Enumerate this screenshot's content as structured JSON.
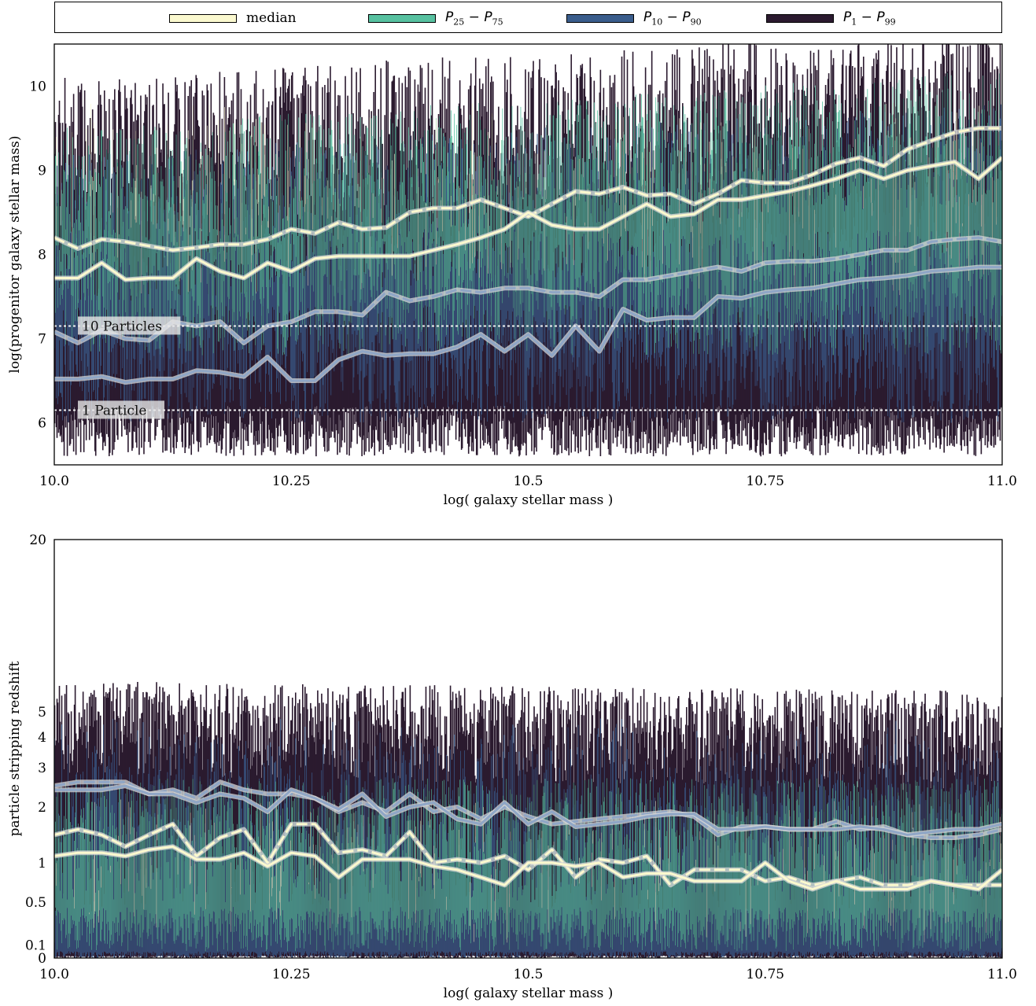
{
  "legend": [
    {
      "label": "median",
      "color": "#fbf9cf",
      "math": false
    },
    {
      "label": "P25 − P75",
      "sym_a": "P",
      "sub_a": "25",
      "sym_b": "P",
      "sub_b": "75",
      "color": "#57c1a0",
      "math": true
    },
    {
      "label": "P10 − P90",
      "sym_a": "P",
      "sub_a": "10",
      "sym_b": "P",
      "sub_b": "90",
      "color": "#3a5d8c",
      "math": true
    },
    {
      "label": "P1 − P99",
      "sym_a": "P",
      "sub_a": "1",
      "sym_b": "P",
      "sub_b": "99",
      "color": "#2b1a2f",
      "math": true
    }
  ],
  "chart_data": [
    {
      "type": "line",
      "title": "",
      "xlabel": "log( galaxy stellar mass )",
      "ylabel": "log(progenitor galaxy stellar mass)",
      "xlim": [
        10.0,
        11.0
      ],
      "ylim": [
        5.5,
        10.5
      ],
      "xticks": [
        10.0,
        10.25,
        10.5,
        10.75,
        11.0
      ],
      "xtick_labels": [
        "10.0",
        "10.25",
        "10.5",
        "10.75",
        "11.0"
      ],
      "yticks": [
        6,
        7,
        8,
        9,
        10
      ],
      "ytick_labels": [
        "6",
        "7",
        "8",
        "9",
        "10"
      ],
      "grid": false,
      "band_range": {
        "bottom_min": 5.6,
        "bottom_max": 6.2,
        "top_min": 8.3,
        "top_max": 10.5
      },
      "reference_lines": [
        {
          "label": "10 Particles",
          "y": 7.15
        },
        {
          "label": "1 Particle",
          "y": 6.15
        }
      ],
      "series": [
        {
          "role": "median-dashed",
          "style": "dashed",
          "color": "#fbf9cf",
          "x": [
            10.0,
            10.025,
            10.05,
            10.075,
            10.1,
            10.125,
            10.15,
            10.175,
            10.2,
            10.225,
            10.25,
            10.275,
            10.3,
            10.325,
            10.35,
            10.375,
            10.4,
            10.425,
            10.45,
            10.475,
            10.5,
            10.525,
            10.55,
            10.575,
            10.6,
            10.625,
            10.65,
            10.675,
            10.7,
            10.725,
            10.75,
            10.775,
            10.8,
            10.825,
            10.85,
            10.875,
            10.9,
            10.925,
            10.95,
            10.975,
            11.0
          ],
          "y": [
            8.2,
            8.07,
            8.18,
            8.15,
            8.1,
            8.05,
            8.08,
            8.12,
            8.12,
            8.18,
            8.3,
            8.25,
            8.38,
            8.3,
            8.32,
            8.5,
            8.55,
            8.55,
            8.65,
            8.55,
            8.45,
            8.6,
            8.75,
            8.72,
            8.8,
            8.7,
            8.72,
            8.6,
            8.72,
            8.88,
            8.85,
            8.85,
            8.95,
            9.08,
            9.15,
            9.05,
            9.25,
            9.35,
            9.45,
            9.5,
            9.5
          ]
        },
        {
          "role": "median",
          "style": "solid",
          "color": "#fbf9cf",
          "x": [
            10.0,
            10.025,
            10.05,
            10.075,
            10.1,
            10.125,
            10.15,
            10.175,
            10.2,
            10.225,
            10.25,
            10.275,
            10.3,
            10.325,
            10.35,
            10.375,
            10.4,
            10.425,
            10.45,
            10.475,
            10.5,
            10.525,
            10.55,
            10.575,
            10.6,
            10.625,
            10.65,
            10.675,
            10.7,
            10.725,
            10.75,
            10.775,
            10.8,
            10.825,
            10.85,
            10.875,
            10.9,
            10.925,
            10.95,
            10.975,
            11.0
          ],
          "y": [
            7.72,
            7.72,
            7.9,
            7.7,
            7.72,
            7.72,
            7.95,
            7.8,
            7.72,
            7.9,
            7.8,
            7.95,
            7.98,
            7.98,
            7.98,
            7.98,
            8.05,
            8.12,
            8.2,
            8.3,
            8.5,
            8.35,
            8.3,
            8.3,
            8.45,
            8.6,
            8.45,
            8.48,
            8.65,
            8.65,
            8.7,
            8.75,
            8.82,
            8.9,
            9.0,
            8.9,
            9.0,
            9.05,
            9.1,
            8.9,
            9.15
          ]
        },
        {
          "role": "p10-dashed",
          "style": "dashed",
          "color": "#8fa6c6",
          "x": [
            10.0,
            10.025,
            10.05,
            10.075,
            10.1,
            10.125,
            10.15,
            10.175,
            10.2,
            10.225,
            10.25,
            10.275,
            10.3,
            10.325,
            10.35,
            10.375,
            10.4,
            10.425,
            10.45,
            10.475,
            10.5,
            10.525,
            10.55,
            10.575,
            10.6,
            10.625,
            10.65,
            10.675,
            10.7,
            10.725,
            10.75,
            10.775,
            10.8,
            10.825,
            10.85,
            10.875,
            10.9,
            10.925,
            10.95,
            10.975,
            11.0
          ],
          "y": [
            7.08,
            6.95,
            7.1,
            7.0,
            6.98,
            7.2,
            7.15,
            7.2,
            6.95,
            7.15,
            7.2,
            7.32,
            7.32,
            7.28,
            7.55,
            7.45,
            7.5,
            7.58,
            7.55,
            7.6,
            7.6,
            7.55,
            7.55,
            7.5,
            7.7,
            7.7,
            7.75,
            7.8,
            7.85,
            7.8,
            7.9,
            7.92,
            7.92,
            7.95,
            8.0,
            8.05,
            8.05,
            8.15,
            8.18,
            8.2,
            8.15
          ]
        },
        {
          "role": "p10",
          "style": "solid",
          "color": "#8fa6c6",
          "x": [
            10.0,
            10.025,
            10.05,
            10.075,
            10.1,
            10.125,
            10.15,
            10.175,
            10.2,
            10.225,
            10.25,
            10.275,
            10.3,
            10.325,
            10.35,
            10.375,
            10.4,
            10.425,
            10.45,
            10.475,
            10.5,
            10.525,
            10.55,
            10.575,
            10.6,
            10.625,
            10.65,
            10.675,
            10.7,
            10.725,
            10.75,
            10.775,
            10.8,
            10.825,
            10.85,
            10.875,
            10.9,
            10.925,
            10.95,
            10.975,
            11.0
          ],
          "y": [
            6.52,
            6.52,
            6.55,
            6.48,
            6.52,
            6.52,
            6.62,
            6.6,
            6.55,
            6.78,
            6.5,
            6.5,
            6.75,
            6.85,
            6.8,
            6.82,
            6.82,
            6.9,
            7.05,
            6.85,
            7.05,
            6.8,
            7.15,
            6.85,
            7.35,
            7.22,
            7.25,
            7.25,
            7.5,
            7.48,
            7.55,
            7.58,
            7.6,
            7.65,
            7.7,
            7.72,
            7.75,
            7.8,
            7.82,
            7.85,
            7.85
          ]
        }
      ]
    },
    {
      "type": "line",
      "title": "",
      "xlabel": "log( galaxy stellar mass )",
      "ylabel": "particle stripping redshift",
      "xlim": [
        10.0,
        11.0
      ],
      "ylim": [
        0,
        20
      ],
      "yscale": "log(1+z)",
      "xticks": [
        10.0,
        10.25,
        10.5,
        10.75,
        11.0
      ],
      "xtick_labels": [
        "10.0",
        "10.25",
        "10.5",
        "10.75",
        "11.0"
      ],
      "yticks": [
        0,
        0.1,
        0.5,
        1,
        2,
        3,
        4,
        5,
        20
      ],
      "ytick_labels": [
        "0",
        "0.1",
        "0.5",
        "1",
        "2",
        "3",
        "4",
        "5",
        "20"
      ],
      "grid": false,
      "band_range": {
        "bottom_min": 0.0,
        "bottom_max": 0.02,
        "top_min": 2.8,
        "top_max": 6.5
      },
      "series": [
        {
          "role": "p10-dashed",
          "style": "dashed",
          "color": "#8fa6c6",
          "x": [
            10.0,
            10.025,
            10.05,
            10.075,
            10.1,
            10.125,
            10.15,
            10.175,
            10.2,
            10.225,
            10.25,
            10.275,
            10.3,
            10.325,
            10.35,
            10.375,
            10.4,
            10.425,
            10.45,
            10.475,
            10.5,
            10.525,
            10.55,
            10.575,
            10.6,
            10.625,
            10.65,
            10.675,
            10.7,
            10.725,
            10.75,
            10.775,
            10.8,
            10.825,
            10.85,
            10.875,
            10.9,
            10.925,
            10.95,
            10.975,
            11.0
          ],
          "y": [
            2.5,
            2.6,
            2.6,
            2.6,
            2.3,
            2.4,
            2.2,
            2.6,
            2.4,
            2.3,
            2.3,
            2.2,
            1.9,
            2.1,
            1.9,
            2.3,
            1.9,
            2.0,
            1.75,
            2.0,
            1.8,
            1.65,
            1.7,
            1.75,
            1.8,
            1.85,
            1.9,
            1.8,
            1.45,
            1.6,
            1.6,
            1.55,
            1.55,
            1.7,
            1.55,
            1.6,
            1.45,
            1.4,
            1.4,
            1.45,
            1.55
          ]
        },
        {
          "role": "p10",
          "style": "solid",
          "color": "#8fa6c6",
          "x": [
            10.0,
            10.025,
            10.05,
            10.075,
            10.1,
            10.125,
            10.15,
            10.175,
            10.2,
            10.225,
            10.25,
            10.275,
            10.3,
            10.325,
            10.35,
            10.375,
            10.4,
            10.425,
            10.45,
            10.475,
            10.5,
            10.525,
            10.55,
            10.575,
            10.6,
            10.625,
            10.65,
            10.675,
            10.7,
            10.725,
            10.75,
            10.775,
            10.8,
            10.825,
            10.85,
            10.875,
            10.9,
            10.925,
            10.95,
            10.975,
            11.0
          ],
          "y": [
            2.4,
            2.4,
            2.4,
            2.5,
            2.3,
            2.3,
            2.1,
            2.3,
            2.2,
            1.9,
            2.4,
            2.2,
            1.95,
            2.3,
            1.8,
            2.0,
            2.1,
            1.75,
            1.65,
            2.1,
            1.65,
            1.9,
            1.6,
            1.65,
            1.7,
            1.8,
            1.85,
            1.85,
            1.55,
            1.55,
            1.6,
            1.55,
            1.55,
            1.55,
            1.6,
            1.55,
            1.45,
            1.5,
            1.55,
            1.55,
            1.65
          ]
        },
        {
          "role": "median-dashed",
          "style": "dashed",
          "color": "#fbf9cf",
          "x": [
            10.0,
            10.025,
            10.05,
            10.075,
            10.1,
            10.125,
            10.15,
            10.175,
            10.2,
            10.225,
            10.25,
            10.275,
            10.3,
            10.325,
            10.35,
            10.375,
            10.4,
            10.425,
            10.45,
            10.475,
            10.5,
            10.525,
            10.55,
            10.575,
            10.6,
            10.625,
            10.65,
            10.675,
            10.7,
            10.725,
            10.75,
            10.775,
            10.8,
            10.825,
            10.85,
            10.875,
            10.9,
            10.925,
            10.95,
            10.975,
            11.0
          ],
          "y": [
            1.45,
            1.55,
            1.45,
            1.25,
            1.45,
            1.65,
            1.1,
            1.4,
            1.55,
            1.0,
            1.65,
            1.65,
            1.15,
            1.2,
            1.1,
            1.5,
            1.0,
            1.05,
            1.0,
            1.1,
            0.9,
            1.2,
            0.8,
            1.05,
            1.0,
            1.1,
            0.7,
            0.9,
            0.9,
            0.9,
            0.75,
            0.8,
            0.7,
            0.75,
            0.8,
            0.7,
            0.7,
            0.75,
            0.7,
            0.7,
            0.7
          ]
        },
        {
          "role": "median",
          "style": "solid",
          "color": "#fbf9cf",
          "x": [
            10.0,
            10.025,
            10.05,
            10.075,
            10.1,
            10.125,
            10.15,
            10.175,
            10.2,
            10.225,
            10.25,
            10.275,
            10.3,
            10.325,
            10.35,
            10.375,
            10.4,
            10.425,
            10.45,
            10.475,
            10.5,
            10.525,
            10.55,
            10.575,
            10.6,
            10.625,
            10.65,
            10.675,
            10.7,
            10.725,
            10.75,
            10.775,
            10.8,
            10.825,
            10.85,
            10.875,
            10.9,
            10.925,
            10.95,
            10.975,
            11.0
          ],
          "y": [
            1.1,
            1.15,
            1.15,
            1.1,
            1.2,
            1.25,
            1.05,
            1.05,
            1.15,
            0.95,
            1.15,
            1.1,
            0.8,
            1.05,
            1.05,
            1.05,
            0.95,
            0.9,
            0.8,
            0.7,
            1.0,
            1.0,
            0.95,
            1.0,
            0.8,
            0.85,
            0.85,
            0.75,
            0.75,
            0.75,
            1.0,
            0.75,
            0.65,
            0.75,
            0.65,
            0.65,
            0.65,
            0.75,
            0.7,
            0.65,
            0.9
          ]
        }
      ]
    }
  ]
}
